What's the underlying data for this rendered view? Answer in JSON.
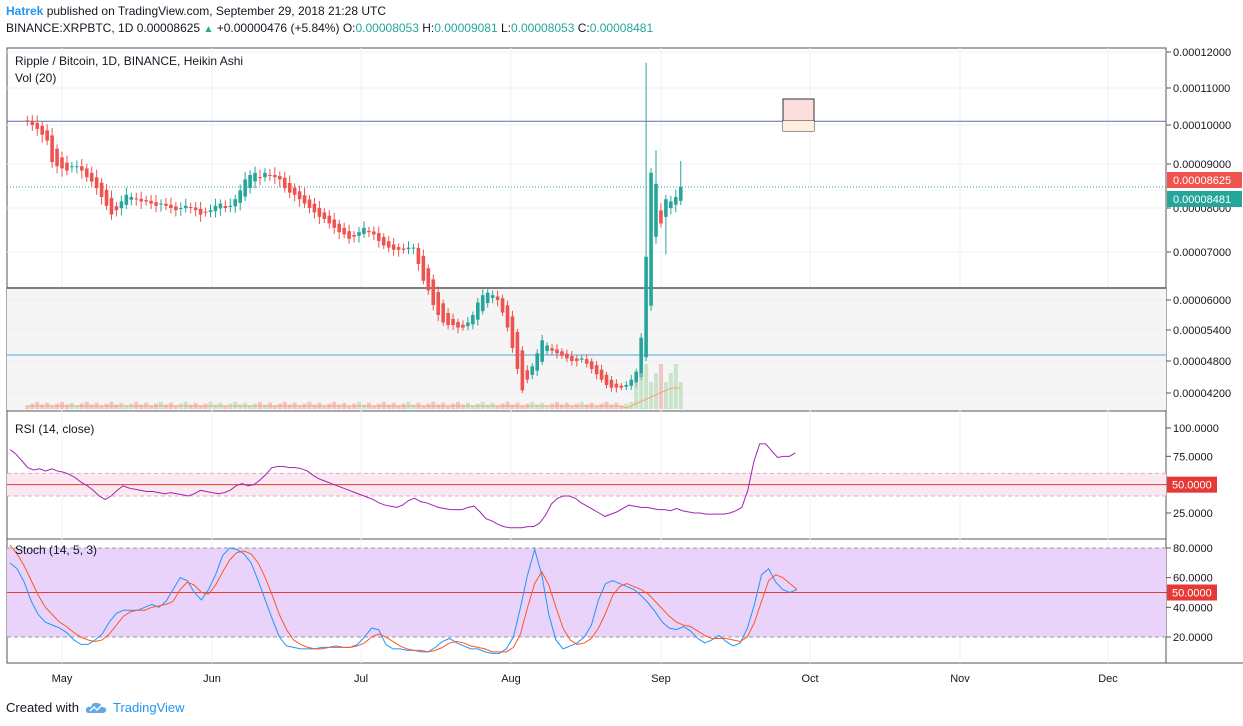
{
  "header": {
    "author": "Hatrek",
    "published_text": "published on TradingView.com, September 29, 2018 21:28 UTC",
    "symbol": "BINANCE:XRPBTC, 1D",
    "price": "0.00008625",
    "change": "+0.00000476 (+5.84%)",
    "o_label": "O:",
    "o": "0.00008053",
    "h_label": "H:",
    "h": "0.00009081",
    "l_label": "L:",
    "l": "0.00008053",
    "c_label": "C:",
    "c": "0.00008481"
  },
  "footer": {
    "created_with": "Created with",
    "brand": "TradingView"
  },
  "colors": {
    "up": "#26a69a",
    "down": "#ef5350",
    "rsi": "#9c27b0",
    "stoch_k": "#2196f3",
    "stoch_d": "#ff5722",
    "hline": "#5c6bc0",
    "band": "#e1bee7"
  },
  "chart_data": {
    "type": "candlestick",
    "main_pane": {
      "title": "Ripple / Bitcoin, 1D, BINANCE, Heikin Ashi",
      "volume_label": "Vol (20)",
      "y_ticks": [
        "0.00012000",
        "0.00011000",
        "0.00010000",
        "0.00009000",
        "0.00008000",
        "0.00007000",
        "0.00006000",
        "0.00005400",
        "0.00004800",
        "0.00004200"
      ],
      "last_price_label": "0.00008625",
      "close_label": "0.00008481",
      "horizontal_lines": [
        0.000101,
        6.25e-05,
        4.95e-05
      ],
      "close_series": [
        0.000101,
        0.0001,
        9.9e-05,
        9.75e-05,
        9.6e-05,
        9.05e-05,
        8.95e-05,
        8.9e-05,
        8.85e-05,
        8.95e-05,
        8.95e-05,
        8.85e-05,
        8.7e-05,
        8.6e-05,
        8.45e-05,
        8.25e-05,
        8.05e-05,
        7.85e-05,
        7.95e-05,
        8.15e-05,
        8.3e-05,
        8.25e-05,
        8.2e-05,
        8.15e-05,
        8.15e-05,
        8.1e-05,
        8.05e-05,
        8.1e-05,
        8.05e-05,
        8e-05,
        7.95e-05,
        8e-05,
        8.05e-05,
        8e-05,
        7.95e-05,
        7.85e-05,
        7.9e-05,
        7.95e-05,
        8.05e-05,
        8.1e-05,
        8e-05,
        8.05e-05,
        8.2e-05,
        8.4e-05,
        8.65e-05,
        8.75e-05,
        8.8e-05,
        8.7e-05,
        8.8e-05,
        8.75e-05,
        8.7e-05,
        8.65e-05,
        8.45e-05,
        8.35e-05,
        8.3e-05,
        8.2e-05,
        8.1e-05,
        8e-05,
        7.9e-05,
        7.8e-05,
        7.75e-05,
        7.65e-05,
        7.55e-05,
        7.45e-05,
        7.4e-05,
        7.3e-05,
        7.35e-05,
        7.45e-05,
        7.55e-05,
        7.45e-05,
        7.4e-05,
        7.25e-05,
        7.15e-05,
        7.1e-05,
        7.05e-05,
        7.05e-05,
        7.05e-05,
        7.1e-05,
        7.1e-05,
        6.75e-05,
        6.4e-05,
        6.2e-05,
        5.9e-05,
        5.7e-05,
        5.55e-05,
        5.5e-05,
        5.5e-05,
        5.45e-05,
        5.45e-05,
        5.55e-05,
        5.7e-05,
        5.95e-05,
        6.1e-05,
        6.15e-05,
        6.1e-05,
        6e-05,
        5.75e-05,
        5.45e-05,
        5.05e-05,
        4.65e-05,
        4.25e-05,
        4.45e-05,
        4.7e-05,
        4.95e-05,
        5.2e-05,
        5.1e-05,
        5e-05,
        4.95e-05,
        4.9e-05,
        4.85e-05,
        4.8e-05,
        4.8e-05,
        4.85e-05,
        4.75e-05,
        4.65e-05,
        4.55e-05,
        4.45e-05,
        4.35e-05,
        4.3e-05,
        4.3e-05,
        4.3e-05,
        4.35e-05,
        4.45e-05,
        4.6e-05,
        5.25e-05,
        6.9e-05,
        8.8e-05,
        8.55e-05,
        7.65e-05,
        8.2e-05,
        8.15e-05,
        8.25e-05,
        8.48e-05
      ]
    },
    "rsi_pane": {
      "title": "RSI (14, close)",
      "y_ticks": [
        "100.0000",
        "75.0000",
        "50.0000",
        "25.0000"
      ],
      "level_label": "50.0000",
      "band": [
        40,
        60
      ],
      "values": [
        81,
        77,
        71,
        65,
        63,
        64,
        62,
        64,
        62,
        61,
        59,
        56,
        52,
        49,
        45,
        40,
        37,
        40,
        45,
        49,
        47,
        46,
        45,
        44,
        44,
        43,
        42,
        43,
        42,
        41,
        40,
        42,
        45,
        44,
        43,
        42,
        43,
        45,
        49,
        51,
        49,
        50,
        54,
        59,
        65,
        66,
        66,
        65,
        65,
        64,
        62,
        58,
        55,
        53,
        51,
        49,
        47,
        45,
        43,
        41,
        39,
        37,
        34,
        32,
        31,
        30,
        32,
        36,
        38,
        35,
        34,
        32,
        30,
        29,
        28,
        28,
        28,
        30,
        31,
        26,
        20,
        18,
        15,
        13,
        12,
        12,
        12,
        13,
        13,
        16,
        23,
        33,
        38,
        40,
        40,
        38,
        34,
        31,
        28,
        25,
        22,
        24,
        26,
        29,
        32,
        31,
        30,
        30,
        29,
        28,
        28,
        27,
        29,
        27,
        26,
        25,
        25,
        24,
        24,
        24,
        24,
        25,
        27,
        30,
        45,
        70,
        86,
        86,
        80,
        74,
        75,
        75,
        78
      ]
    },
    "stoch_pane": {
      "title": "Stoch (14, 5, 3)",
      "y_ticks": [
        "80.0000",
        "60.0000",
        "50.0000",
        "40.0000",
        "20.0000"
      ],
      "level_label": "50.0000",
      "band": [
        20,
        80
      ],
      "k": [
        70,
        66,
        57,
        44,
        35,
        30,
        28,
        26,
        23,
        18,
        15,
        15,
        18,
        22,
        30,
        36,
        38,
        38,
        38,
        40,
        42,
        40,
        44,
        52,
        60,
        58,
        50,
        45,
        52,
        62,
        75,
        80,
        79,
        76,
        70,
        58,
        45,
        32,
        20,
        14,
        13,
        12,
        12,
        12,
        13,
        13,
        14,
        13,
        13,
        15,
        20,
        26,
        25,
        15,
        12,
        12,
        11,
        11,
        10,
        10,
        13,
        17,
        19,
        16,
        14,
        12,
        12,
        10,
        9,
        9,
        12,
        20,
        40,
        62,
        79,
        62,
        35,
        18,
        12,
        14,
        16,
        20,
        28,
        45,
        56,
        58,
        56,
        54,
        52,
        48,
        43,
        37,
        30,
        26,
        25,
        27,
        24,
        19,
        16,
        18,
        21,
        17,
        14,
        16,
        26,
        42,
        62,
        66,
        57,
        52,
        50,
        52
      ],
      "d": [
        82,
        76,
        68,
        58,
        48,
        40,
        35,
        30,
        27,
        23,
        20,
        18,
        17,
        18,
        22,
        28,
        34,
        37,
        38,
        38,
        40,
        41,
        42,
        44,
        52,
        57,
        55,
        50,
        49,
        55,
        64,
        72,
        77,
        78,
        76,
        70,
        60,
        48,
        35,
        25,
        18,
        15,
        13,
        12,
        12,
        13,
        13,
        13,
        13,
        14,
        16,
        20,
        22,
        20,
        17,
        14,
        12,
        11,
        11,
        10,
        11,
        13,
        16,
        17,
        16,
        14,
        13,
        12,
        10,
        10,
        10,
        13,
        22,
        40,
        56,
        64,
        55,
        40,
        26,
        18,
        15,
        16,
        19,
        26,
        36,
        48,
        54,
        56,
        54,
        52,
        49,
        44,
        39,
        34,
        30,
        28,
        27,
        24,
        21,
        19,
        19,
        19,
        18,
        17,
        20,
        30,
        44,
        58,
        62,
        60,
        56,
        52
      ]
    },
    "x_ticks": [
      "May",
      "Jun",
      "Jul",
      "Aug",
      "Sep",
      "Oct",
      "Nov",
      "Dec"
    ]
  }
}
